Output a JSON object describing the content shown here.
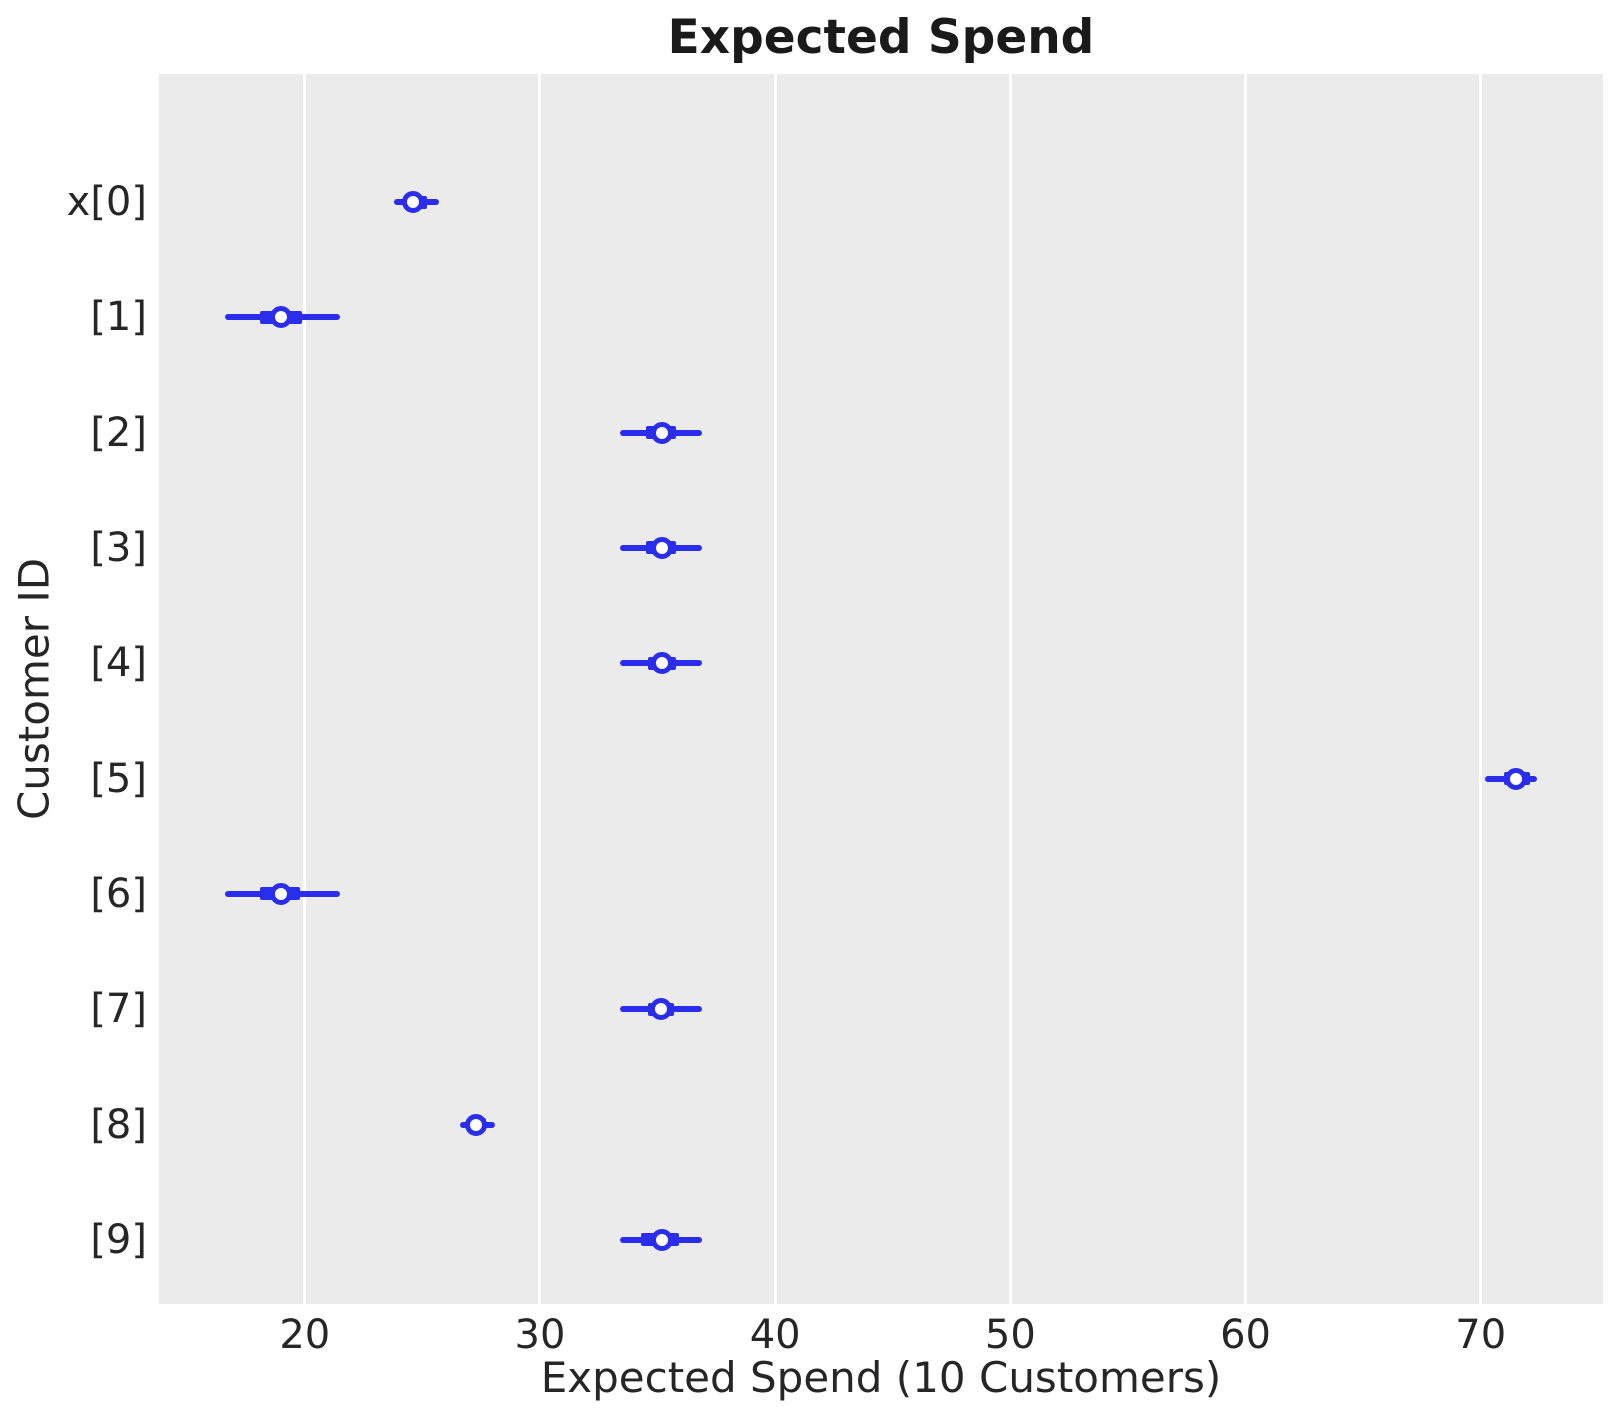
{
  "colors": {
    "plot_background": "#ebebeb",
    "grid": "#ffffff",
    "series": "#2a2eec",
    "marker_face": "#ffffff",
    "text": "#262626"
  },
  "chart_data": {
    "type": "forest",
    "title": "Expected Spend",
    "xlabel": "Expected Spend (10 Customers)",
    "ylabel": "Customer ID",
    "xlim": [
      13.8,
      75.2
    ],
    "xticks": [
      20,
      30,
      40,
      50,
      60,
      70
    ],
    "grid": "vertical only, white on gray",
    "legend": "none",
    "rows": [
      {
        "label": "x[0]",
        "lo": 23.8,
        "q1": 24.2,
        "median": 24.6,
        "q3": 25.2,
        "hi": 25.7
      },
      {
        "label": "[1]",
        "lo": 16.6,
        "q1": 18.1,
        "median": 19.0,
        "q3": 19.9,
        "hi": 21.5
      },
      {
        "label": "[2]",
        "lo": 33.4,
        "q1": 34.5,
        "median": 35.2,
        "q3": 35.8,
        "hi": 36.9
      },
      {
        "label": "[3]",
        "lo": 33.4,
        "q1": 34.5,
        "median": 35.2,
        "q3": 35.8,
        "hi": 36.9
      },
      {
        "label": "[4]",
        "lo": 33.4,
        "q1": 34.6,
        "median": 35.2,
        "q3": 35.8,
        "hi": 36.9
      },
      {
        "label": "[5]",
        "lo": 70.2,
        "q1": 71.0,
        "median": 71.5,
        "q3": 72.1,
        "hi": 72.4
      },
      {
        "label": "[6]",
        "lo": 16.6,
        "q1": 18.1,
        "median": 19.0,
        "q3": 19.8,
        "hi": 21.5
      },
      {
        "label": "[7]",
        "lo": 33.4,
        "q1": 34.6,
        "median": 35.15,
        "q3": 35.7,
        "hi": 36.9
      },
      {
        "label": "[8]",
        "lo": 26.6,
        "q1": 26.9,
        "median": 27.3,
        "q3": 27.7,
        "hi": 28.1
      },
      {
        "label": "[9]",
        "lo": 33.4,
        "q1": 34.3,
        "median": 35.2,
        "q3": 35.9,
        "hi": 36.9
      }
    ]
  }
}
